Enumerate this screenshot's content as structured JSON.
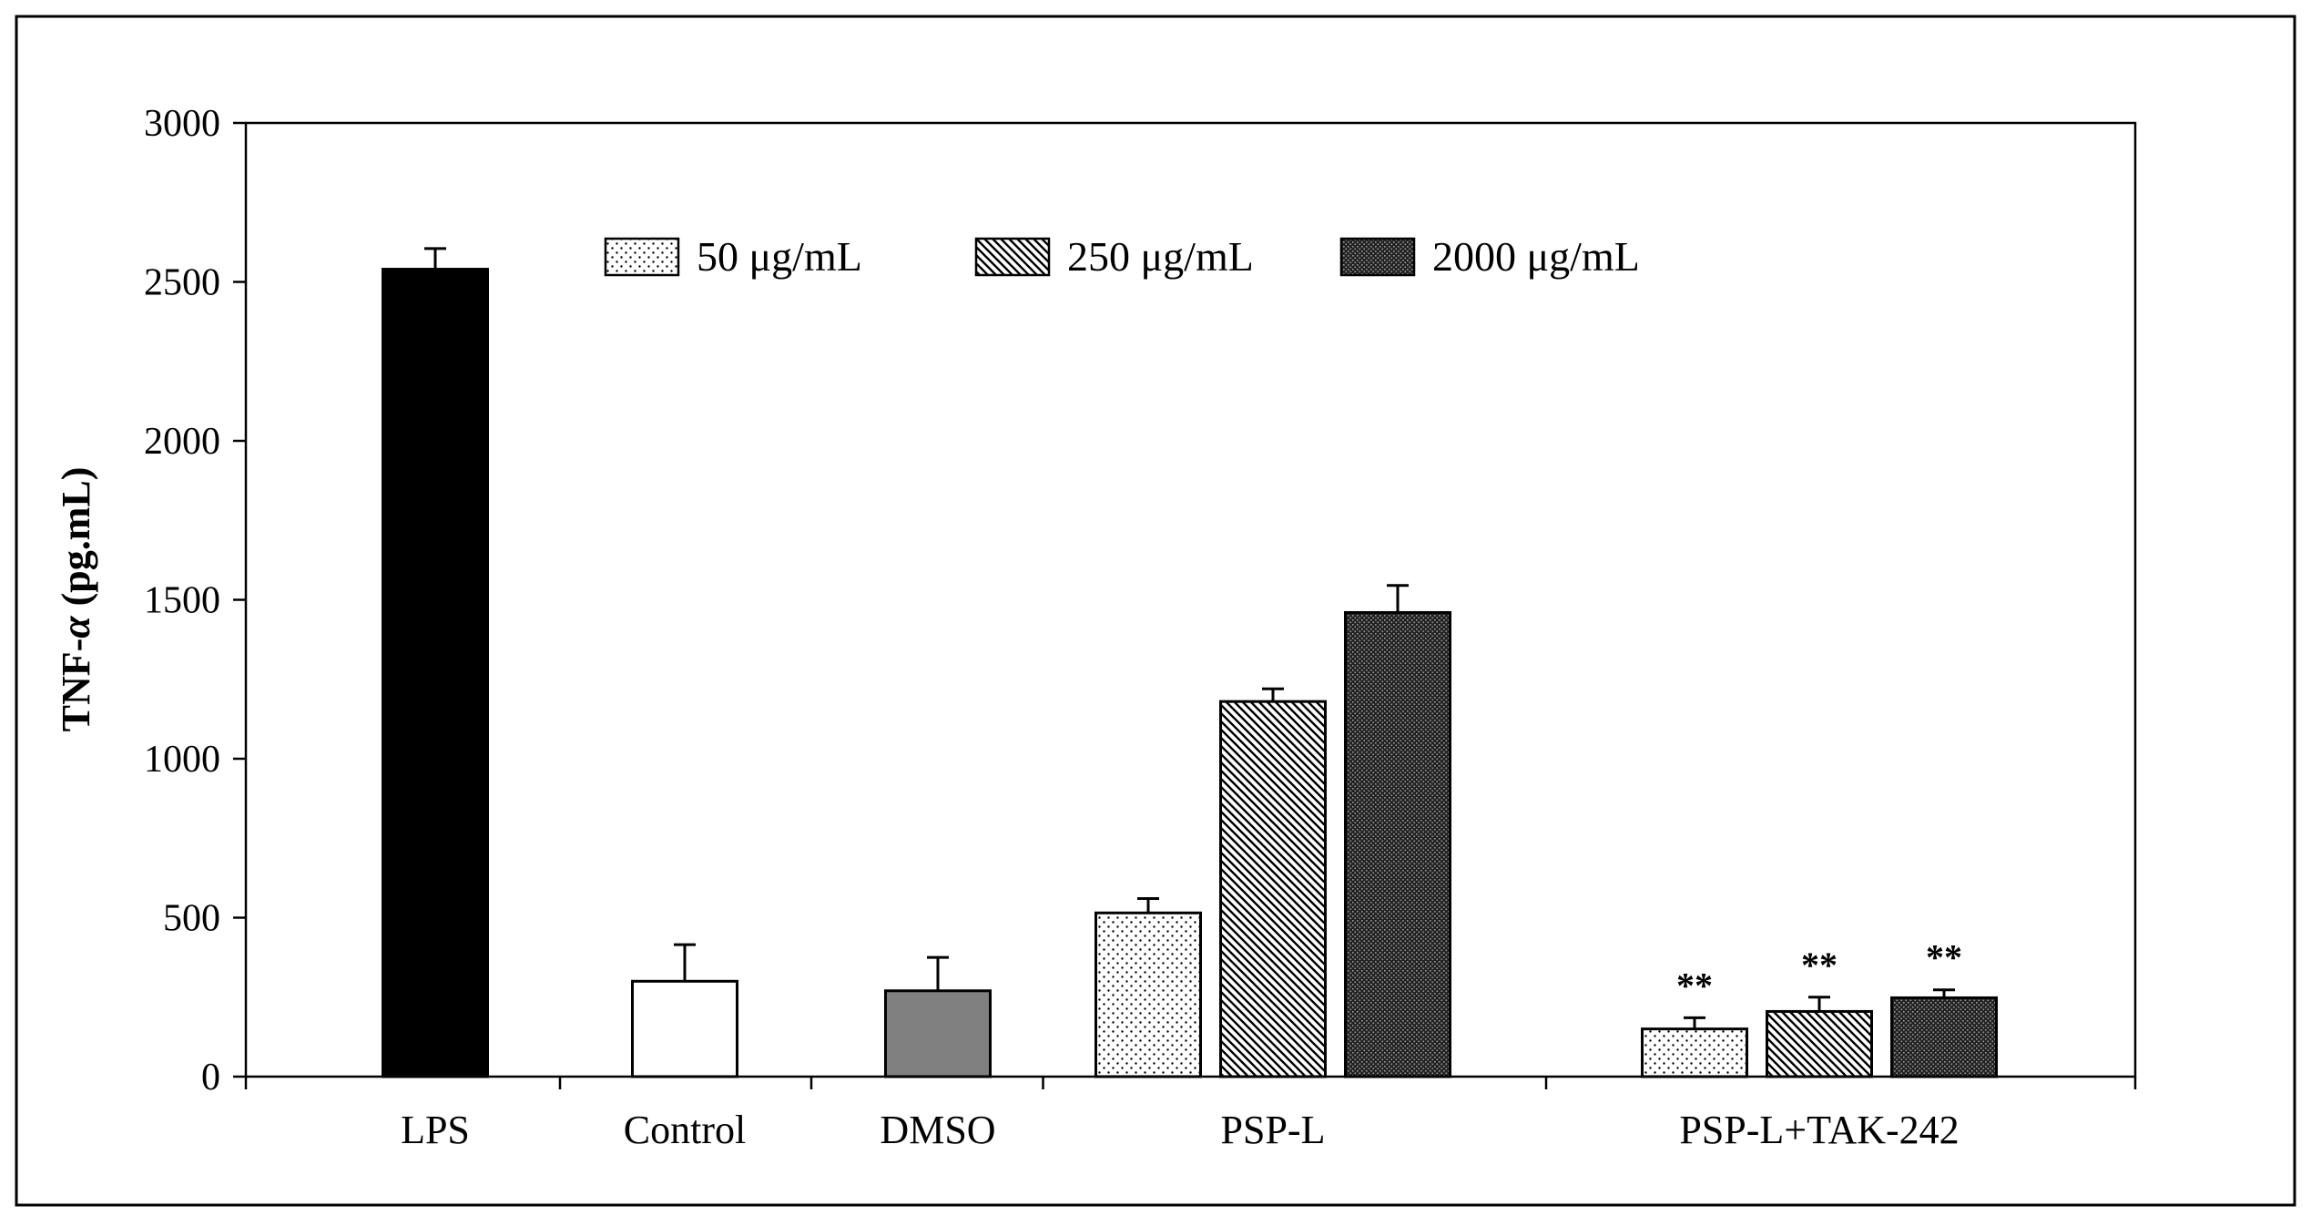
{
  "chart_data": {
    "type": "bar",
    "ylabel_prefix": "TNF-",
    "ylabel_alpha": "α",
    "ylabel_suffix": " (pg.mL)",
    "ylim": [
      0,
      3000
    ],
    "yticks": [
      "0",
      "500",
      "1000",
      "1500",
      "2000",
      "2500",
      "3000"
    ],
    "legend_position": "top-center",
    "legend": [
      {
        "label": "50 μg/mL",
        "pattern": "dots"
      },
      {
        "label": "250 μg/mL",
        "pattern": "hatch"
      },
      {
        "label": "2000 μg/mL",
        "pattern": "dense"
      }
    ],
    "groups": [
      {
        "label": "LPS",
        "bars": [
          {
            "value": 2540,
            "error": 65,
            "fill": "solid-black",
            "annotation": ""
          }
        ]
      },
      {
        "label": "Control",
        "bars": [
          {
            "value": 300,
            "error": 115,
            "fill": "white",
            "annotation": ""
          }
        ]
      },
      {
        "label": "DMSO",
        "bars": [
          {
            "value": 270,
            "error": 105,
            "fill": "solid-gray",
            "annotation": ""
          }
        ]
      },
      {
        "label": "PSP-L",
        "bars": [
          {
            "value": 515,
            "error": 45,
            "fill": "dots",
            "annotation": ""
          },
          {
            "value": 1180,
            "error": 40,
            "fill": "hatch",
            "annotation": ""
          },
          {
            "value": 1460,
            "error": 85,
            "fill": "dense",
            "annotation": ""
          }
        ]
      },
      {
        "label": "PSP-L+TAK-242",
        "bars": [
          {
            "value": 150,
            "error": 35,
            "fill": "dots",
            "annotation": "**"
          },
          {
            "value": 205,
            "error": 45,
            "fill": "hatch",
            "annotation": "**"
          },
          {
            "value": 248,
            "error": 25,
            "fill": "dense",
            "annotation": "**"
          }
        ]
      }
    ],
    "colors": {
      "black": "#000000",
      "gray": "#808080",
      "white": "#ffffff"
    }
  }
}
